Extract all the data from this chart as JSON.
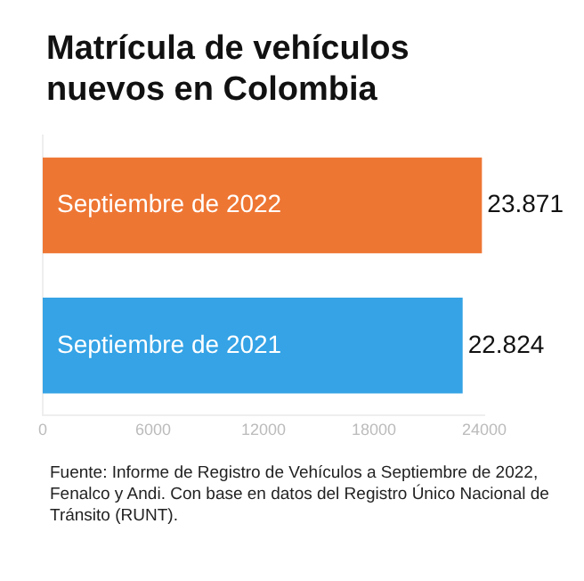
{
  "chart_data": {
    "type": "bar",
    "orientation": "horizontal",
    "title": "Matrícula de vehículos nuevos en Colombia",
    "categories": [
      "Septiembre de 2022",
      "Septiembre de 2021"
    ],
    "values": [
      23871,
      22824
    ],
    "colors": [
      "#ee7633",
      "#35a3e6"
    ],
    "value_labels": [
      "23.871",
      "22.824"
    ],
    "xlim": [
      0,
      24000
    ],
    "xticks": [
      0,
      6000,
      12000,
      18000,
      24000
    ],
    "grid": false,
    "legend": false,
    "annotations": [
      "Fuente: Informe de Registro de Vehículos a Septiembre de 2022, Fenalco y Andi. Con base en datos del Registro Único Nacional de Tránsito (RUNT)."
    ]
  }
}
